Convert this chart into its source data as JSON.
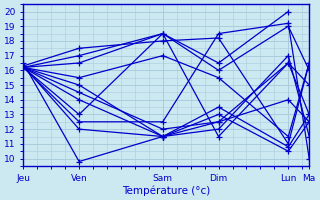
{
  "xlabel": "Température (°c)",
  "xlim": [
    0,
    20
  ],
  "ylim": [
    9.5,
    20.5
  ],
  "yticks": [
    10,
    11,
    12,
    13,
    14,
    15,
    16,
    17,
    18,
    19,
    20
  ],
  "day_positions": [
    0,
    4,
    10,
    14,
    19,
    20.5
  ],
  "xtick_labels": [
    "Jeu",
    "Ven",
    "Sam",
    "Dim",
    "Lun",
    "Ma"
  ],
  "bg_color": "#cce8f0",
  "grid_bg_color": "#cce8f0",
  "plot_bg_color": "#cce8f0",
  "grid_color": "#aaccdd",
  "line_color": "#0000cc",
  "marker": "+",
  "series": [
    [
      0,
      16.2,
      4,
      16.5,
      10,
      18.5,
      14,
      16.5,
      19,
      20.0
    ],
    [
      0,
      16.2,
      4,
      17.0,
      10,
      18.5,
      14,
      16.0,
      19,
      19.0,
      20.5,
      16.0
    ],
    [
      0,
      16.2,
      4,
      15.0,
      10,
      11.5,
      14,
      13.0,
      19,
      10.5,
      20.5,
      12.5
    ],
    [
      0,
      16.2,
      4,
      14.5,
      10,
      12.0,
      14,
      12.5,
      19,
      16.5,
      20.5,
      13.0
    ],
    [
      0,
      16.2,
      4,
      14.0,
      10,
      11.5,
      14,
      13.5,
      19,
      10.8,
      20.5,
      13.0
    ],
    [
      0,
      16.2,
      4,
      13.0,
      10,
      18.5,
      14,
      11.5,
      19,
      16.5,
      20.5,
      15.0
    ],
    [
      0,
      16.3,
      4,
      17.5,
      10,
      18.0,
      14,
      18.2,
      19,
      11.0,
      20.5,
      16.5
    ],
    [
      0,
      16.3,
      4,
      12.0,
      10,
      11.5,
      14,
      12.0,
      19,
      17.0,
      20.5,
      11.5
    ],
    [
      0,
      16.5,
      4,
      9.8,
      10,
      11.5,
      14,
      12.5,
      19,
      14.0,
      20.5,
      12.5
    ],
    [
      0,
      16.2,
      4,
      12.5,
      10,
      12.5,
      14,
      18.5,
      19,
      19.2,
      20.5,
      10.0
    ],
    [
      0,
      16.2,
      4,
      15.5,
      10,
      17.0,
      14,
      15.5,
      19,
      11.5,
      20.5,
      16.5
    ]
  ],
  "minor_xtick_interval": 1,
  "minor_ytick_interval": 0.5
}
